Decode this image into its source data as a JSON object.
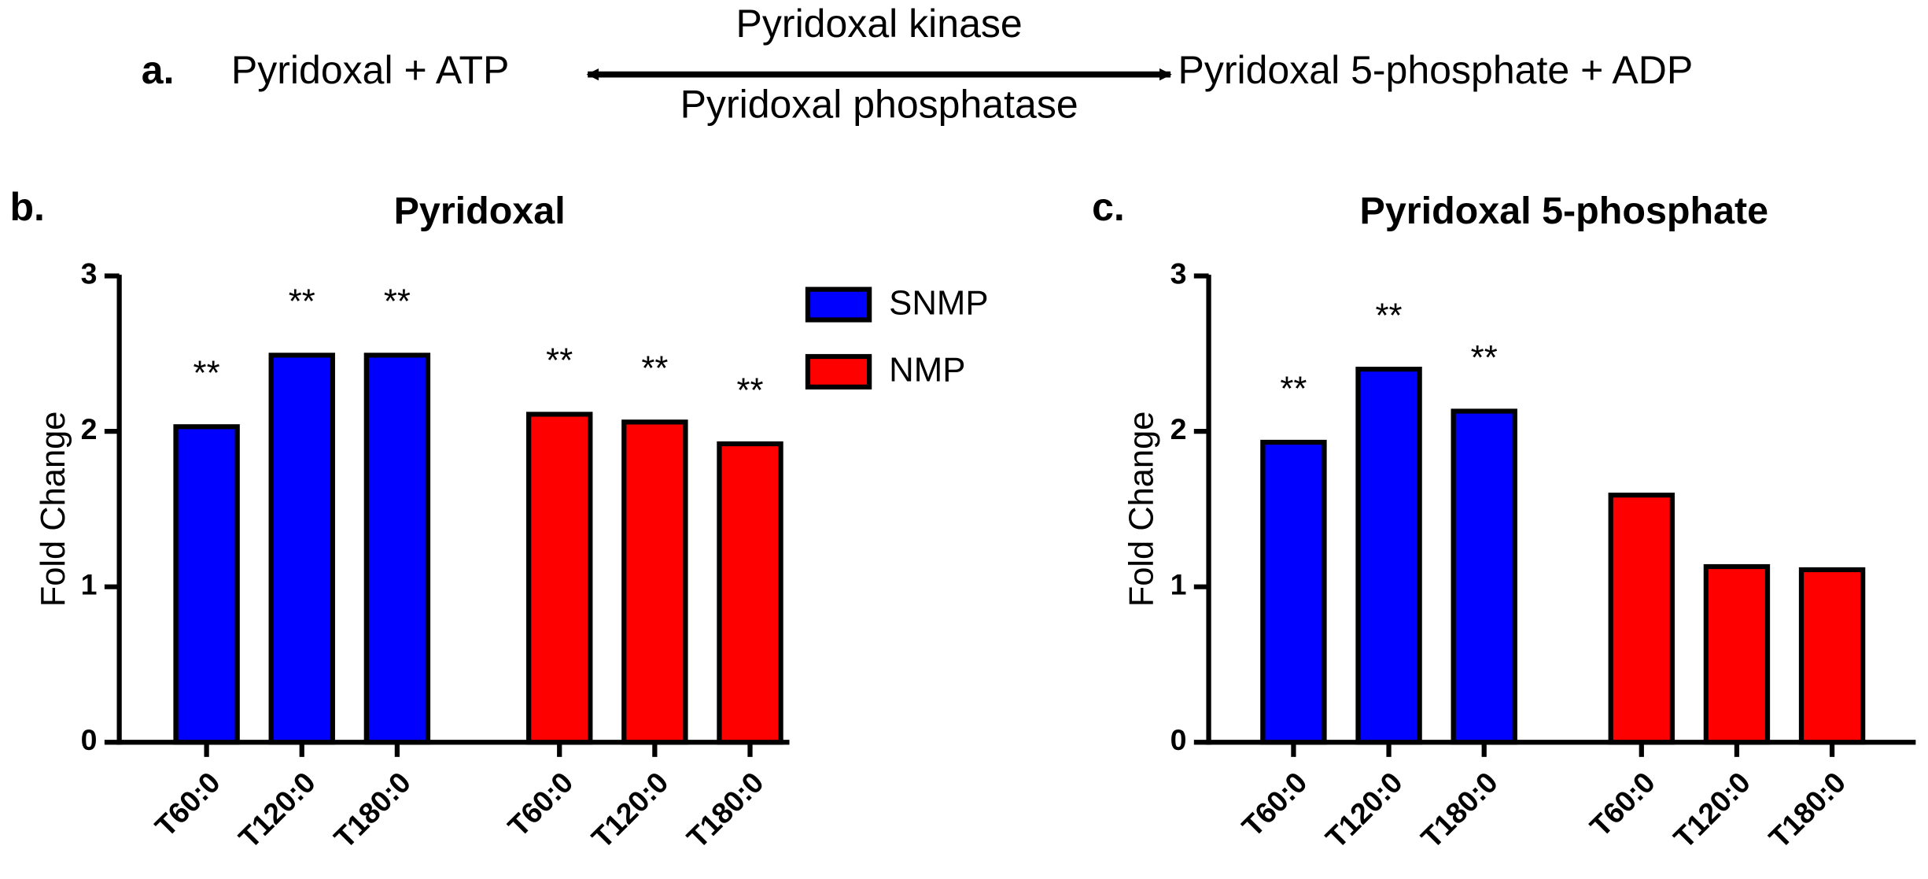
{
  "reaction": {
    "label": "a.",
    "left": "Pyridoxal + ATP",
    "right": "Pyridoxal 5-phosphate + ADP",
    "forward": "Pyridoxal kinase",
    "reverse": "Pyridoxal phosphatase"
  },
  "chart_data": [
    {
      "type": "bar",
      "panel": "b.",
      "title": "Pyridoxal",
      "ylabel": "Fold Change",
      "categories": [
        "T60:0",
        "T120:0",
        "T180:0"
      ],
      "series": [
        {
          "name": "SNMP",
          "color": "#0000ff",
          "values": [
            2.03,
            2.49,
            2.49
          ],
          "annotations": [
            "**",
            "**",
            "**"
          ]
        },
        {
          "name": "NMP",
          "color": "#ff0000",
          "values": [
            2.11,
            2.06,
            1.92
          ],
          "annotations": [
            "**",
            "**",
            "**"
          ]
        }
      ],
      "ylim": [
        0,
        3
      ],
      "yticks": [
        0,
        1,
        2,
        3
      ],
      "legend": "upper right"
    },
    {
      "type": "bar",
      "panel": "c.",
      "title": "Pyridoxal 5-phosphate",
      "ylabel": "Fold Change",
      "categories": [
        "T60:0",
        "T120:0",
        "T180:0"
      ],
      "series": [
        {
          "name": "SNMP",
          "color": "#0000ff",
          "values": [
            1.93,
            2.4,
            2.13
          ],
          "annotations": [
            "**",
            "**",
            "**"
          ]
        },
        {
          "name": "NMP",
          "color": "#ff0000",
          "values": [
            1.59,
            1.13,
            1.11
          ],
          "annotations": [
            null,
            null,
            null
          ]
        }
      ],
      "ylim": [
        0,
        3
      ],
      "yticks": [
        0,
        1,
        2,
        3
      ]
    }
  ]
}
